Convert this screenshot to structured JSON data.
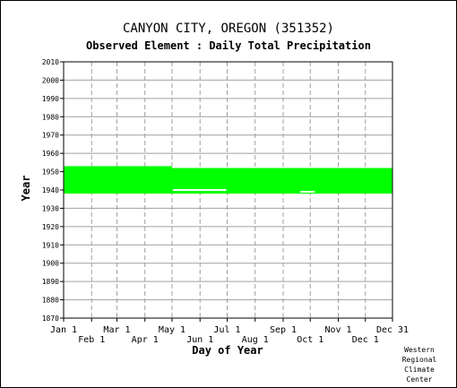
{
  "chart_data": {
    "type": "heatmap",
    "title": "CANYON CITY, OREGON   (351352)",
    "subtitle": "Observed Element : Daily Total Precipitation",
    "xlabel": "Day of Year",
    "ylabel": "Year",
    "ylim": [
      1870,
      2010
    ],
    "yticks": [
      1870,
      1880,
      1890,
      1900,
      1910,
      1920,
      1930,
      1940,
      1950,
      1960,
      1970,
      1980,
      1990,
      2000,
      2010
    ],
    "xlim": [
      1,
      365
    ],
    "x_ticks_upper": [
      {
        "label": "Jan 1",
        "day": 1
      },
      {
        "label": "Mar 1",
        "day": 60
      },
      {
        "label": "May 1",
        "day": 121
      },
      {
        "label": "Jul 1",
        "day": 182
      },
      {
        "label": "Sep 1",
        "day": 244
      },
      {
        "label": "Nov 1",
        "day": 305
      },
      {
        "label": "Dec 31",
        "day": 365
      }
    ],
    "x_ticks_lower": [
      {
        "label": "Feb 1",
        "day": 32
      },
      {
        "label": "Apr 1",
        "day": 91
      },
      {
        "label": "Jun 1",
        "day": 152
      },
      {
        "label": "Aug 1",
        "day": 213
      },
      {
        "label": "Oct 1",
        "day": 274
      },
      {
        "label": "Dec 1",
        "day": 335
      }
    ],
    "grid": true,
    "data_color": "#00ff00",
    "coverage": [
      {
        "start_day": 1,
        "end_day": 60,
        "start_year": 1938,
        "end_year": 1953
      },
      {
        "start_day": 60,
        "end_day": 121,
        "start_year": 1938,
        "end_year": 1953
      },
      {
        "start_day": 121,
        "end_day": 365,
        "start_year": 1938,
        "end_year": 1952
      }
    ],
    "gaps": [
      {
        "start_day": 122,
        "end_day": 181,
        "year": 1940
      },
      {
        "start_day": 263,
        "end_day": 279,
        "year": 1939
      }
    ]
  },
  "credit": [
    "Western",
    "Regional",
    "Climate",
    "Center"
  ]
}
